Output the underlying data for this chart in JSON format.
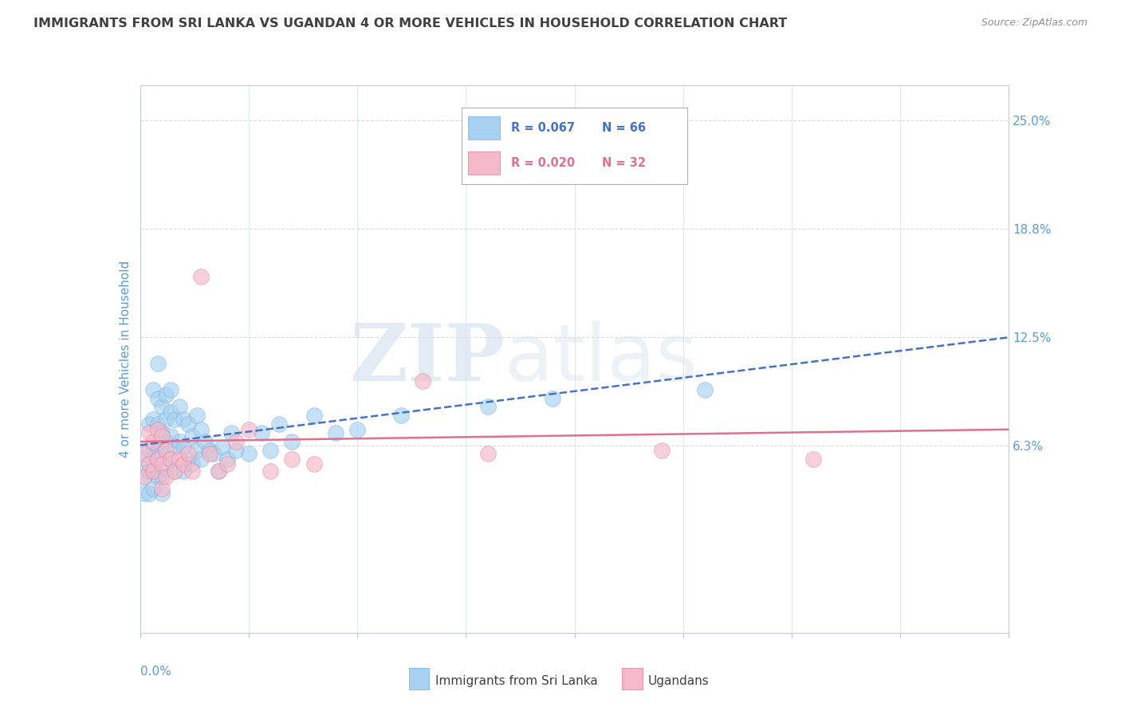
{
  "title": "IMMIGRANTS FROM SRI LANKA VS UGANDAN 4 OR MORE VEHICLES IN HOUSEHOLD CORRELATION CHART",
  "source": "Source: ZipAtlas.com",
  "ylabel": "4 or more Vehicles in Household",
  "right_ytick_vals": [
    0.0625,
    0.125,
    0.1875,
    0.25
  ],
  "right_yticklabels": [
    "6.3%",
    "12.5%",
    "18.8%",
    "25.0%"
  ],
  "xmin": 0.0,
  "xmax": 0.2,
  "ymin": -0.045,
  "ymax": 0.27,
  "series1_label": "Immigrants from Sri Lanka",
  "series1_R": "0.067",
  "series1_N": "66",
  "series1_color": "#a8d0f0",
  "series1_edge_color": "#6aaee0",
  "series1_trend_color": "#4472c4",
  "series2_label": "Ugandans",
  "series2_R": "0.020",
  "series2_N": "32",
  "series2_color": "#f5b8c8",
  "series2_edge_color": "#e07898",
  "series2_trend_color": "#e07090",
  "watermark_zip": "ZIP",
  "watermark_atlas": "atlas",
  "background_color": "#ffffff",
  "grid_color": "#d0dce8",
  "title_color": "#404040",
  "axis_label_color": "#5b9bd5",
  "sri_lanka_x": [
    0.001,
    0.001,
    0.001,
    0.002,
    0.002,
    0.002,
    0.002,
    0.003,
    0.003,
    0.003,
    0.003,
    0.003,
    0.004,
    0.004,
    0.004,
    0.004,
    0.004,
    0.005,
    0.005,
    0.005,
    0.005,
    0.005,
    0.006,
    0.006,
    0.006,
    0.006,
    0.007,
    0.007,
    0.007,
    0.007,
    0.008,
    0.008,
    0.008,
    0.009,
    0.009,
    0.01,
    0.01,
    0.01,
    0.011,
    0.011,
    0.012,
    0.012,
    0.013,
    0.013,
    0.014,
    0.014,
    0.015,
    0.016,
    0.017,
    0.018,
    0.019,
    0.02,
    0.021,
    0.022,
    0.025,
    0.028,
    0.03,
    0.032,
    0.035,
    0.04,
    0.045,
    0.05,
    0.06,
    0.08,
    0.095,
    0.13
  ],
  "sri_lanka_y": [
    0.055,
    0.045,
    0.035,
    0.075,
    0.06,
    0.048,
    0.035,
    0.095,
    0.078,
    0.062,
    0.05,
    0.038,
    0.11,
    0.09,
    0.075,
    0.06,
    0.045,
    0.085,
    0.07,
    0.058,
    0.045,
    0.035,
    0.092,
    0.078,
    0.065,
    0.05,
    0.095,
    0.082,
    0.068,
    0.055,
    0.078,
    0.062,
    0.048,
    0.085,
    0.065,
    0.078,
    0.062,
    0.048,
    0.075,
    0.055,
    0.068,
    0.052,
    0.08,
    0.06,
    0.072,
    0.055,
    0.065,
    0.06,
    0.058,
    0.048,
    0.062,
    0.055,
    0.07,
    0.06,
    0.058,
    0.07,
    0.06,
    0.075,
    0.065,
    0.08,
    0.07,
    0.072,
    0.08,
    0.085,
    0.09,
    0.095
  ],
  "ugandan_x": [
    0.001,
    0.001,
    0.002,
    0.002,
    0.003,
    0.003,
    0.004,
    0.004,
    0.005,
    0.005,
    0.005,
    0.006,
    0.006,
    0.007,
    0.008,
    0.009,
    0.01,
    0.011,
    0.012,
    0.014,
    0.016,
    0.018,
    0.02,
    0.022,
    0.025,
    0.03,
    0.035,
    0.04,
    0.065,
    0.08,
    0.12,
    0.155
  ],
  "ugandan_y": [
    0.058,
    0.045,
    0.07,
    0.052,
    0.065,
    0.048,
    0.072,
    0.055,
    0.068,
    0.052,
    0.038,
    0.06,
    0.045,
    0.055,
    0.048,
    0.055,
    0.052,
    0.058,
    0.048,
    0.16,
    0.058,
    0.048,
    0.052,
    0.065,
    0.072,
    0.048,
    0.055,
    0.052,
    0.1,
    0.058,
    0.06,
    0.055
  ]
}
